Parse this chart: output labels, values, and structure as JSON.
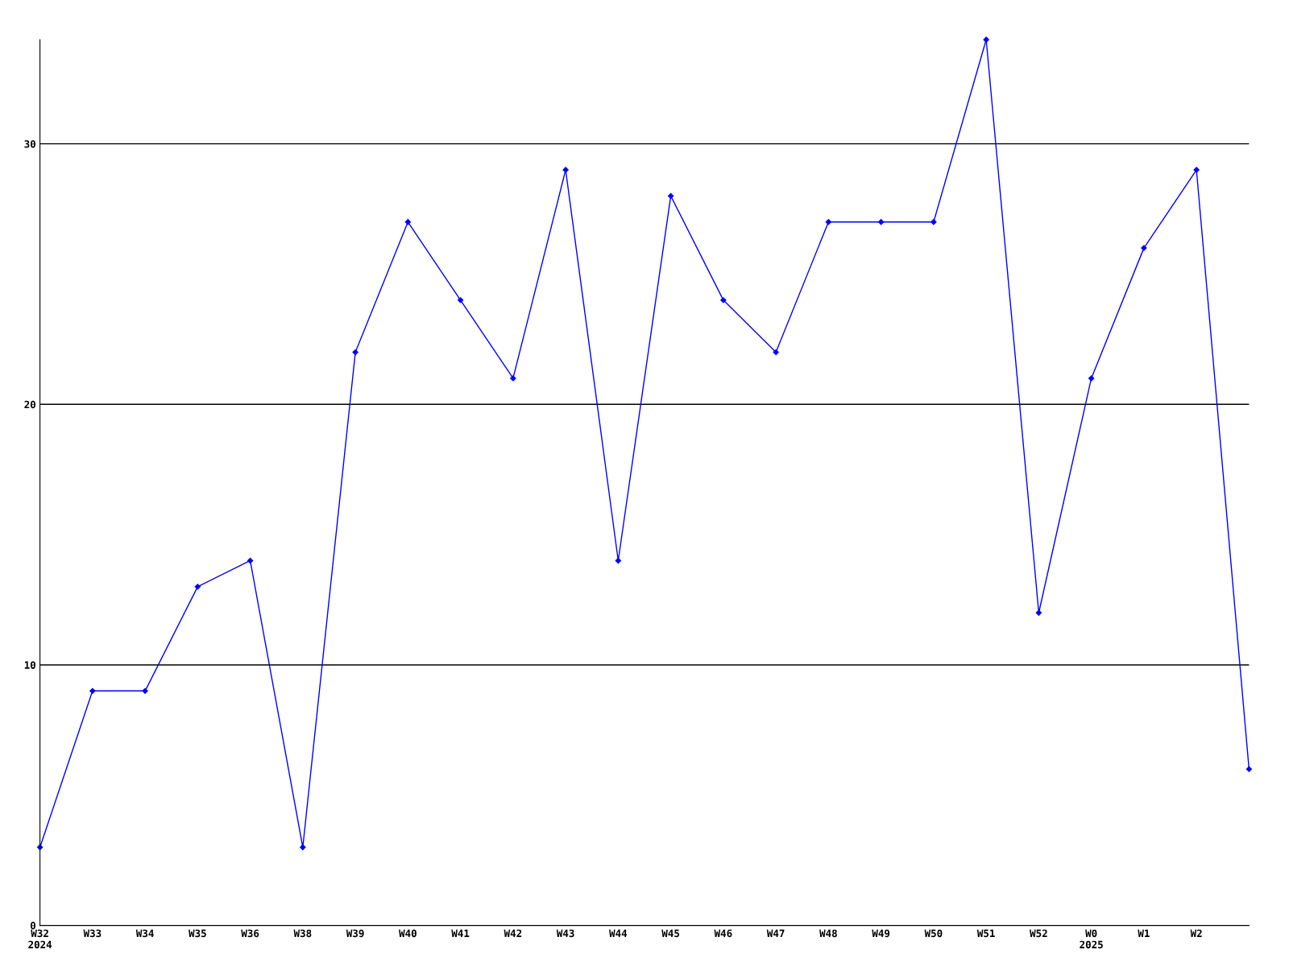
{
  "chart_data": {
    "type": "line",
    "categories": [
      "W32\n2024",
      "W33",
      "W34",
      "W35",
      "W36",
      "W38",
      "W39",
      "W40",
      "W41",
      "W42",
      "W43",
      "W44",
      "W45",
      "W46",
      "W47",
      "W48",
      "W49",
      "W50",
      "W51",
      "W52",
      "W0\n2025",
      "W1",
      "W2",
      null
    ],
    "series": [
      {
        "color": "#0000ff",
        "values": [
          3,
          9,
          9,
          13,
          14,
          3,
          22,
          27,
          24,
          21,
          29,
          14,
          28,
          24,
          22,
          27,
          27,
          27,
          34,
          12,
          21,
          26,
          29,
          6
        ]
      }
    ],
    "ylim": [
      0,
      34
    ],
    "yticks": [
      0,
      10,
      20,
      30
    ],
    "grid": "y",
    "marker": "diamond",
    "line_style": "solid"
  }
}
